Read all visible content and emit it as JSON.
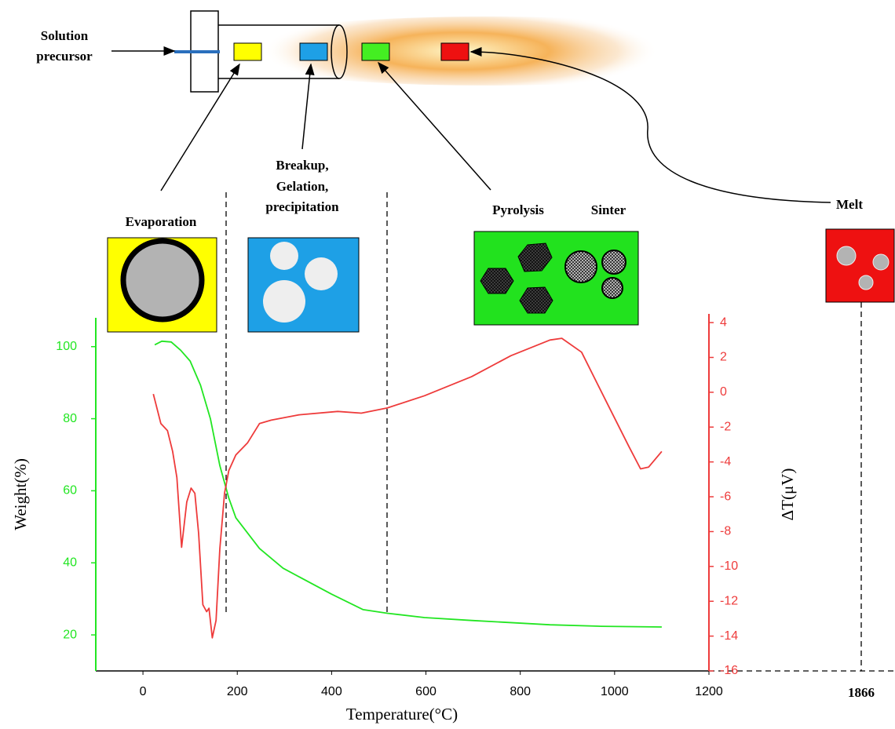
{
  "diagram": {
    "solution": [
      "Solution",
      "precursor"
    ],
    "evaporation": "Evaporation",
    "breakup": [
      "Breakup,",
      "Gelation,",
      "precipitation"
    ],
    "pyrolysis": "Pyrolysis",
    "sinter": "Sinter",
    "melt": "Melt",
    "melt_temperature": "1866"
  },
  "chart_data": {
    "type": "line",
    "x_label": "Temperature(°C)",
    "y_label": "Weight(%)",
    "y2_label": "ΔT(μV)",
    "xlim": [
      -100,
      1200
    ],
    "xticks": [
      0,
      200,
      400,
      600,
      800,
      1000,
      1200
    ],
    "ylim": [
      10,
      108
    ],
    "yticks": [
      20,
      40,
      60,
      80,
      100
    ],
    "y2lim": [
      -16,
      4.5
    ],
    "y2ticks": [
      -16,
      -14,
      -12,
      -10,
      -8,
      -6,
      -4,
      -2,
      0,
      2,
      4
    ],
    "series": [
      {
        "color": "#22e622",
        "x": [
          25,
          40,
          60,
          80,
          100,
          122,
          143,
          163,
          182,
          197,
          247,
          297,
          400,
          467,
          518,
          597,
          697,
          863,
          972,
          1100
        ],
        "values": [
          100.5,
          101.5,
          101.3,
          99,
          96,
          89.3,
          80,
          67,
          58,
          52.5,
          44,
          38.5,
          31.3,
          27,
          26,
          24.8,
          24,
          22.8,
          22.4,
          22.2
        ]
      },
      {
        "color": "#ee3b3b",
        "axis": "y2",
        "x": [
          22,
          38,
          52,
          63,
          72,
          82,
          93,
          102,
          110,
          118,
          127,
          135,
          140,
          147,
          155,
          163,
          173,
          182,
          197,
          222,
          247,
          272,
          330,
          413,
          463,
          518,
          597,
          697,
          780,
          863,
          888,
          930,
          980,
          1030,
          1055,
          1072,
          1100
        ],
        "values": [
          -0.1,
          -1.8,
          -2.2,
          -3.4,
          -4.9,
          -8.9,
          -6.3,
          -5.5,
          -5.8,
          -8.1,
          -12.2,
          -12.6,
          -12.4,
          -14.1,
          -13.1,
          -9,
          -5.8,
          -4.5,
          -3.6,
          -2.9,
          -1.8,
          -1.6,
          -1.3,
          -1.1,
          -1.2,
          -0.9,
          -0.2,
          0.9,
          2.1,
          3,
          3.1,
          2.3,
          -0.4,
          -3.1,
          -4.4,
          -4.3,
          -3.4
        ]
      }
    ]
  }
}
